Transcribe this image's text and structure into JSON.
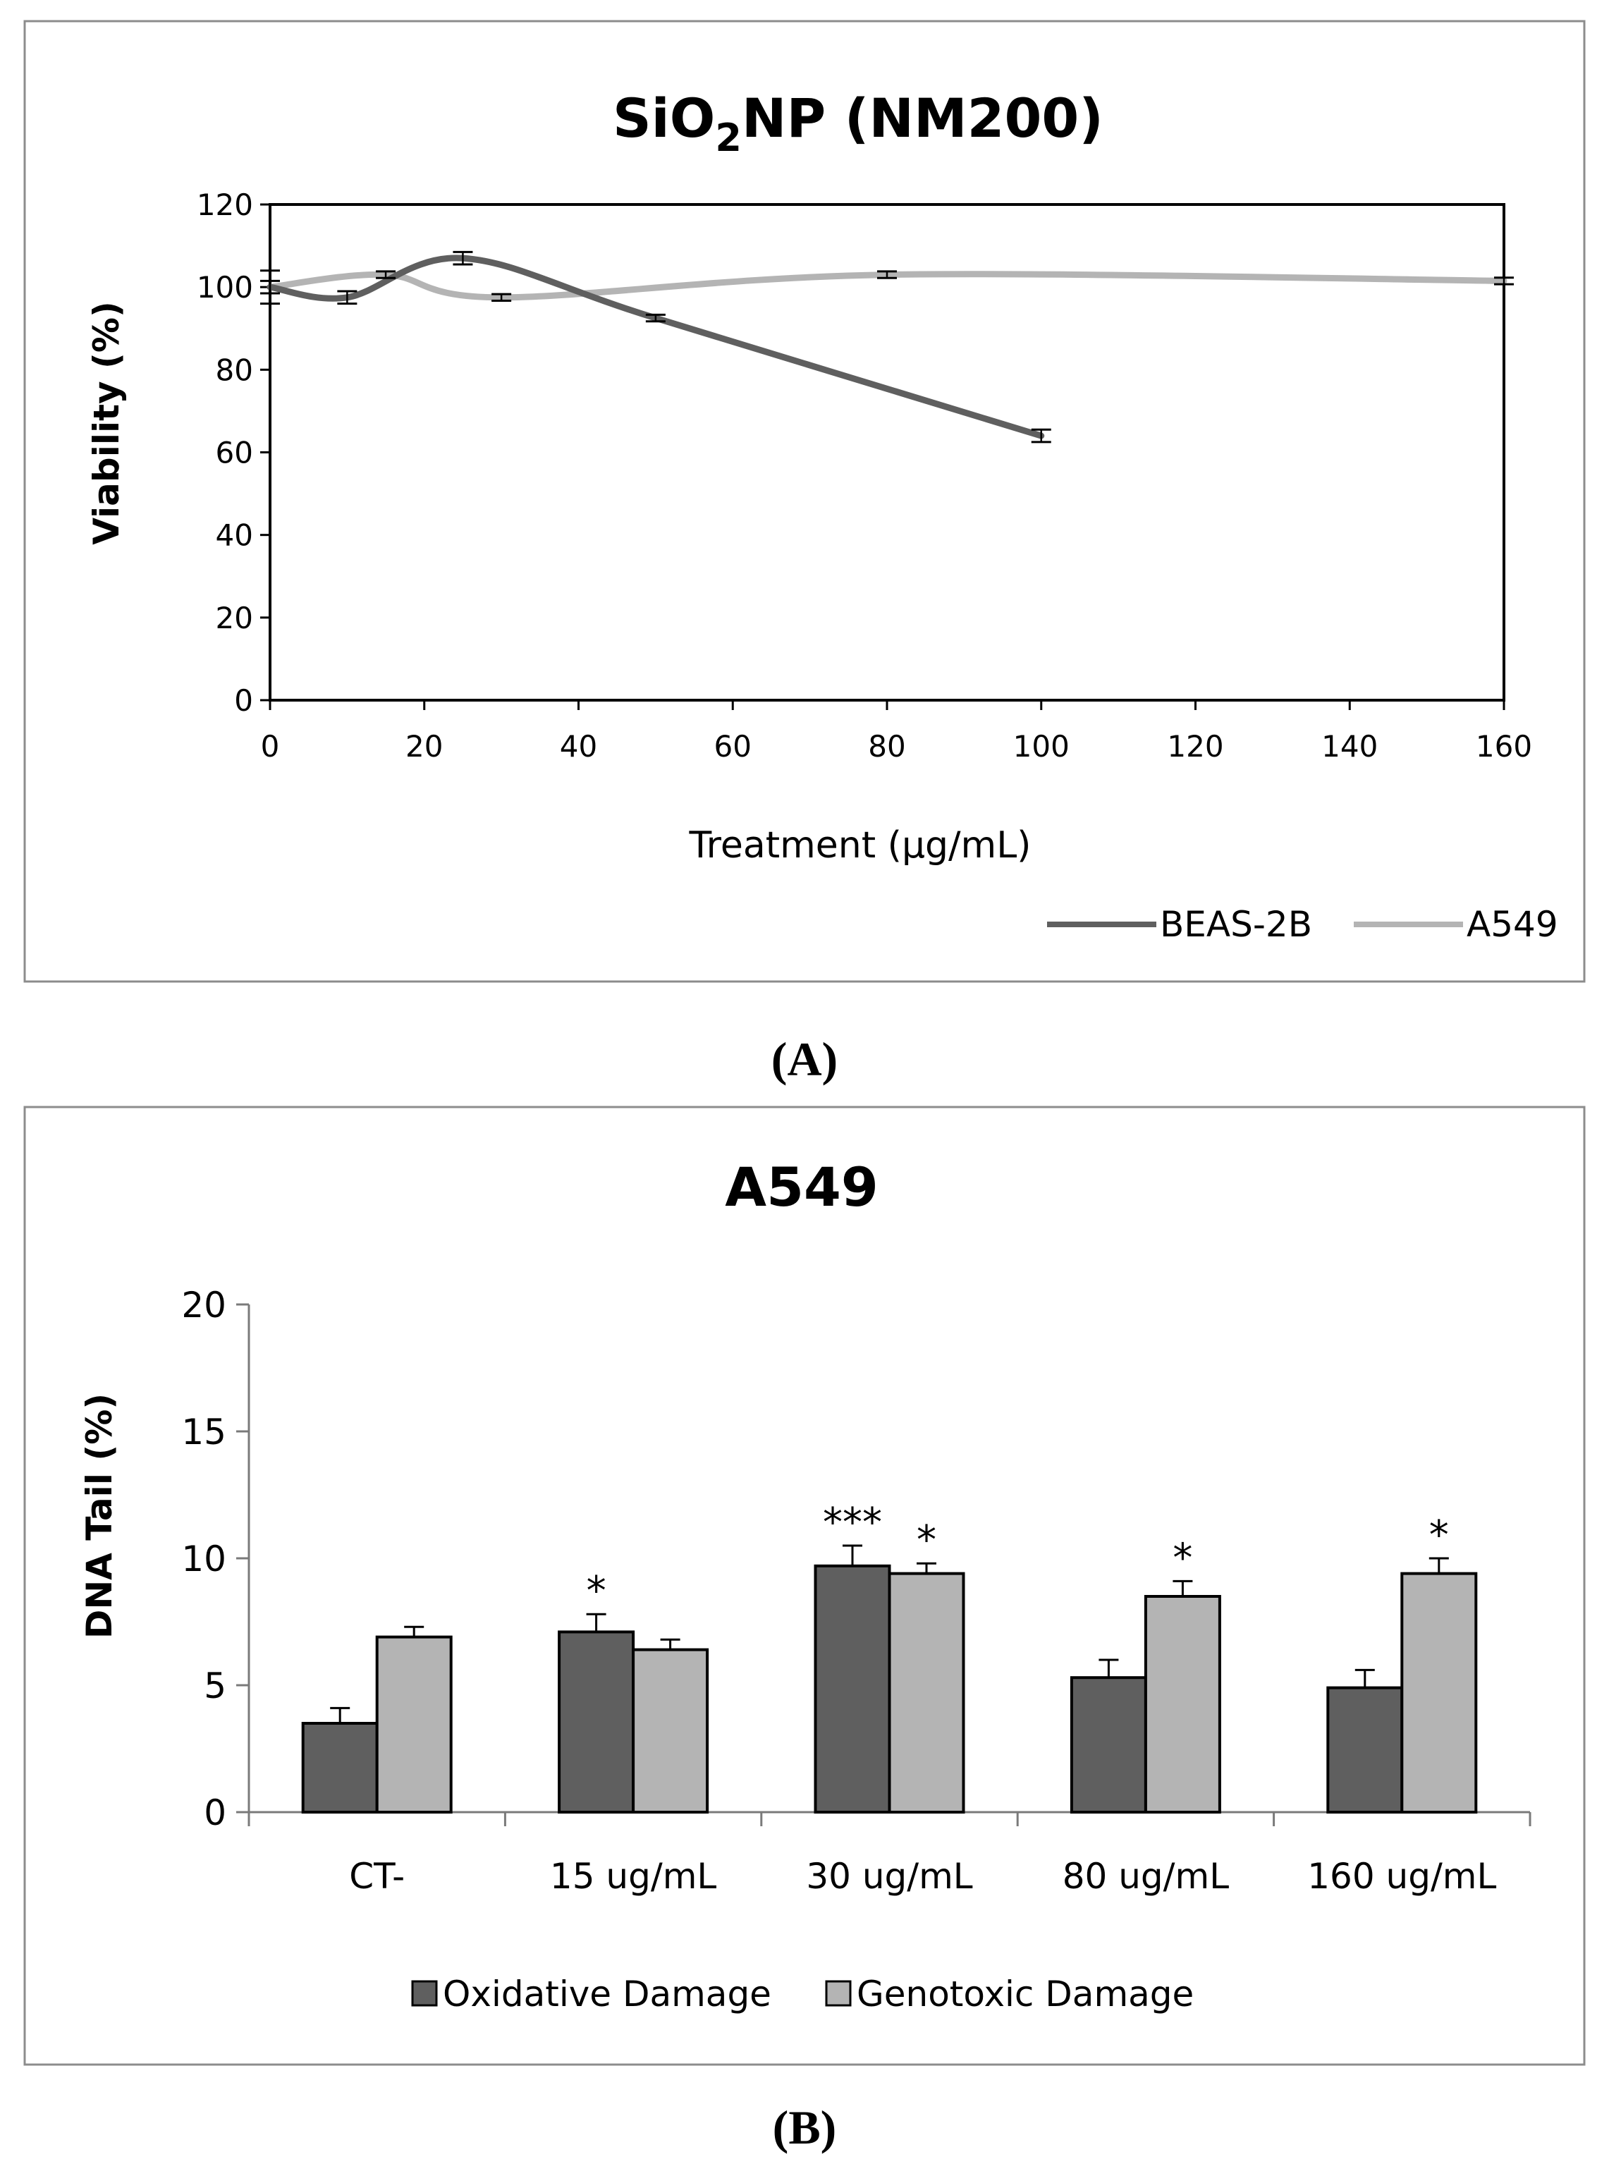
{
  "chart_data": [
    {
      "type": "line",
      "title_main": "SiO",
      "title_sub": "2",
      "title_rest": "NP (NM200)",
      "xlabel": "Treatment (µg/mL)",
      "ylabel": "Viability (%)",
      "xlim": [
        0,
        160
      ],
      "ylim": [
        0,
        120
      ],
      "x_ticks": [
        0,
        20,
        40,
        60,
        80,
        100,
        120,
        140,
        160
      ],
      "y_ticks": [
        0,
        20,
        40,
        60,
        80,
        100,
        120
      ],
      "legend_position": "bottom-right",
      "series": [
        {
          "name": "BEAS-2B",
          "color": "#5f5f5f",
          "x": [
            0,
            10,
            25,
            50,
            100
          ],
          "y": [
            100,
            97.5,
            107,
            92.5,
            64
          ],
          "err": [
            4,
            1.5,
            1.5,
            0.8,
            1.5
          ]
        },
        {
          "name": "A549",
          "color": "#b4b4b4",
          "x": [
            0,
            15,
            30,
            80,
            160
          ],
          "y": [
            100,
            103,
            97.5,
            103,
            101.5
          ],
          "err": [
            1.5,
            0.8,
            0.8,
            0.8,
            0.8
          ]
        }
      ]
    },
    {
      "type": "bar",
      "title": "A549",
      "xlabel": "",
      "ylabel": "DNA Tail   (%)",
      "ylim": [
        0,
        20
      ],
      "y_ticks": [
        0,
        5,
        10,
        15,
        20
      ],
      "categories": [
        "CT-",
        "15 ug/mL",
        "30 ug/mL",
        "80 ug/mL",
        "160 ug/mL"
      ],
      "legend_position": "bottom",
      "series": [
        {
          "name": "Oxidative Damage",
          "color": "#5f5f5f",
          "values": [
            3.5,
            7.1,
            9.7,
            5.3,
            4.9
          ],
          "err": [
            0.6,
            0.7,
            0.8,
            0.7,
            0.7
          ],
          "annotations": [
            "",
            "*",
            "***",
            "",
            ""
          ]
        },
        {
          "name": "Genotoxic Damage",
          "color": "#b4b4b4",
          "values": [
            6.9,
            6.4,
            9.4,
            8.5,
            9.4
          ],
          "err": [
            0.4,
            0.4,
            0.4,
            0.6,
            0.6
          ],
          "annotations": [
            "",
            "",
            "*",
            "*",
            "*"
          ]
        }
      ]
    }
  ],
  "panel_labels": [
    "(A)",
    "(B)"
  ]
}
